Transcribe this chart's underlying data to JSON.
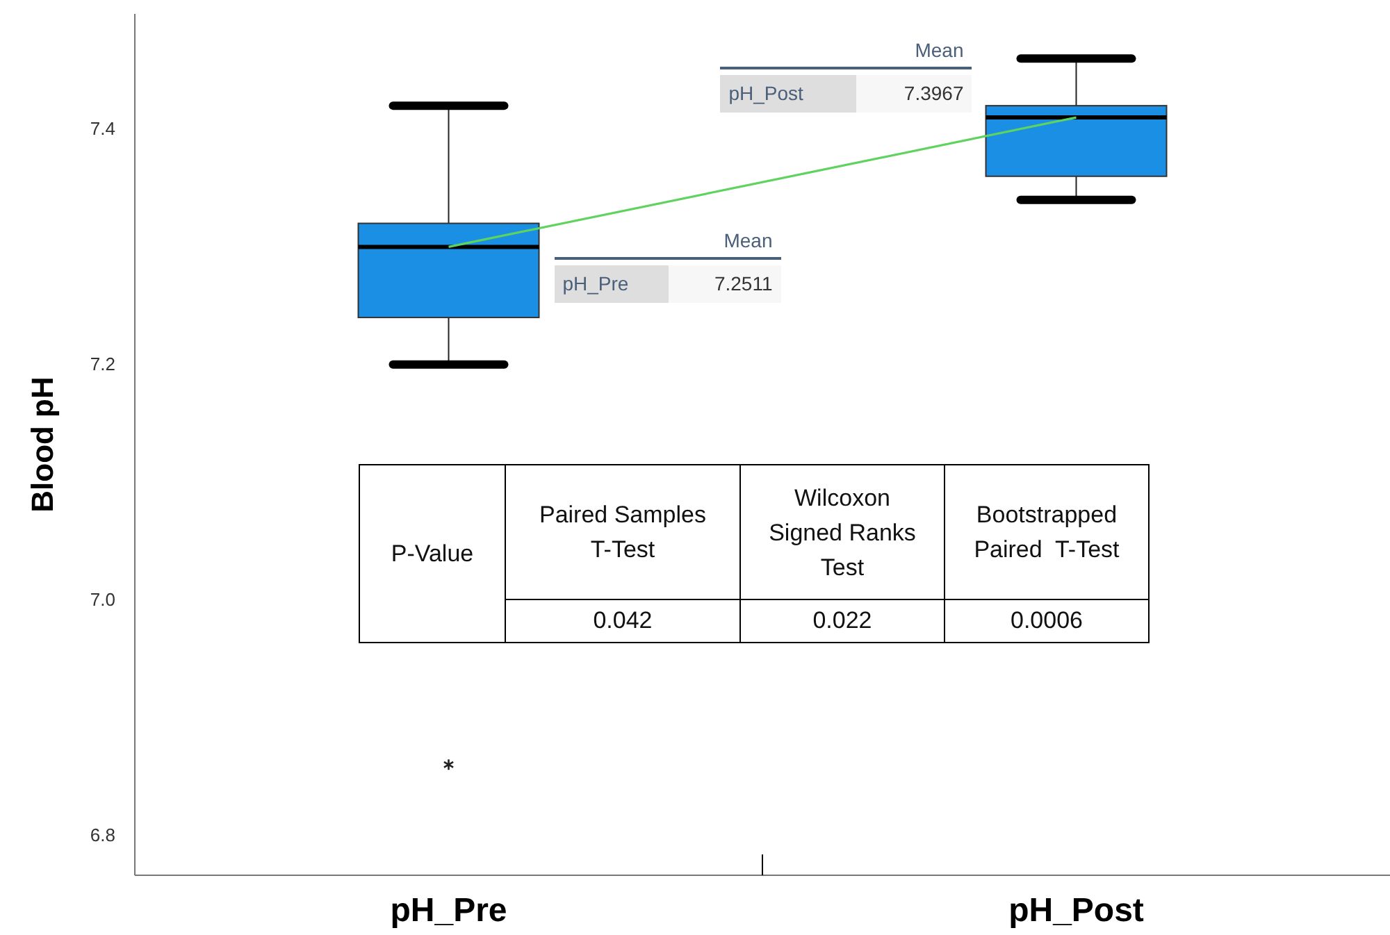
{
  "chart_data": {
    "type": "box",
    "ylabel": "Blood pH",
    "categories": [
      "pH_Pre",
      "pH_Post"
    ],
    "ylim": [
      6.766,
      7.498
    ],
    "yticks": [
      {
        "value": 6.8,
        "label": "6.8"
      },
      {
        "value": 7.0,
        "label": "7.0"
      },
      {
        "value": 7.2,
        "label": "7.2"
      },
      {
        "value": 7.4,
        "label": "7.4"
      }
    ],
    "color": "#1a8fe3",
    "boxes": [
      {
        "low": 7.2,
        "q1": 7.24,
        "median": 7.3,
        "q3": 7.32,
        "high": 7.42,
        "outliers": [
          6.86
        ]
      },
      {
        "low": 7.34,
        "q1": 7.36,
        "median": 7.41,
        "q3": 7.42,
        "high": 7.46
      }
    ],
    "series": [
      {
        "type": "line",
        "color": "#5fd35f",
        "values": [
          7.3,
          7.41
        ]
      }
    ],
    "annotations": [
      "Mean",
      "pH_Pre",
      "7.2511",
      "Mean",
      "pH_Post",
      "7.3967",
      "P-Value",
      "Paired Samples T-Test",
      "Wilcoxon Signed Ranks Test",
      "Bootstrapped Paired  T-Test",
      "0.042",
      "0.022",
      "0.0006"
    ]
  }
}
